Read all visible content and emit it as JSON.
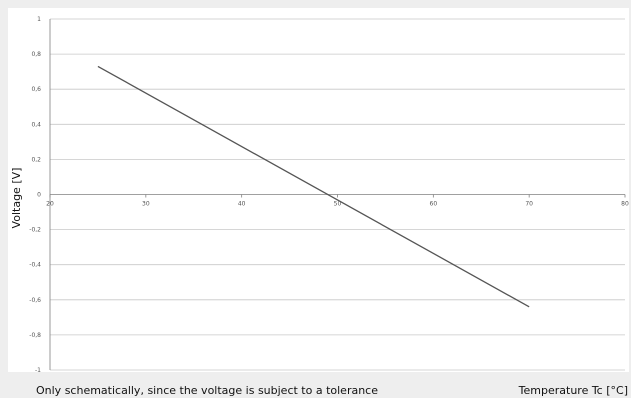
{
  "chart_data": {
    "type": "line",
    "ylabel": "Voltage  [V]",
    "xlabel": "Temperature Tc [°C]",
    "note": "Only schematically, since the voltage is subject to a tolerance",
    "xlim": [
      20,
      80
    ],
    "ylim": [
      -1,
      1
    ],
    "x_ticks": [
      "20",
      "30",
      "40",
      "50",
      "60",
      "70",
      "80"
    ],
    "y_ticks": [
      "1",
      "0,8",
      "0,6",
      "0,4",
      "0,2",
      "0",
      "-0,2",
      "-0,4",
      "-0,6",
      "-0,8",
      "-1"
    ],
    "grid": true,
    "series": [
      {
        "x": [
          25,
          70
        ],
        "y": [
          0.73,
          -0.64
        ]
      }
    ]
  }
}
